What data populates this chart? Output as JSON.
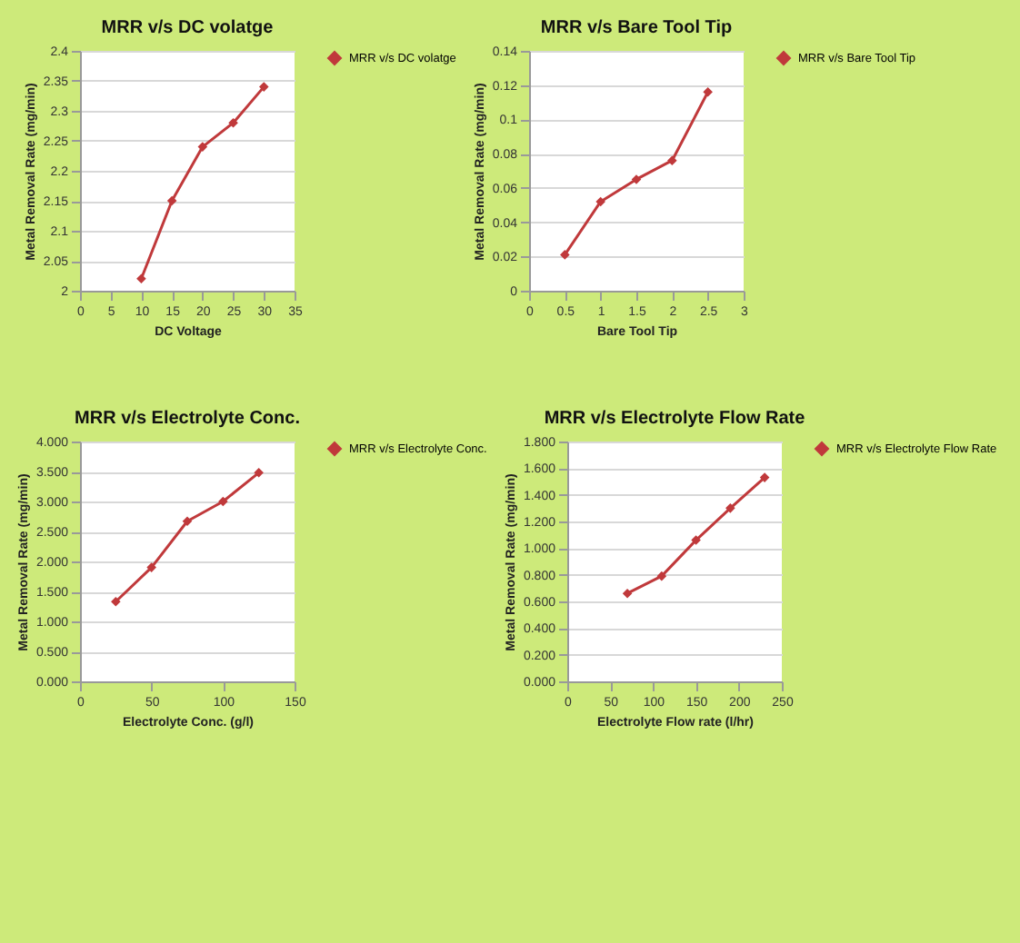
{
  "chart_data": [
    {
      "type": "line",
      "title": "MRR v/s DC volatge",
      "xlabel": "DC Voltage",
      "ylabel": "Metal Removal Rate (mg/min)",
      "x": [
        10,
        15,
        20,
        25,
        30
      ],
      "series": [
        {
          "name": "MRR v/s DC volatge",
          "color": "#c0393b",
          "values": [
            2.02,
            2.15,
            2.24,
            2.28,
            2.34
          ]
        }
      ],
      "xlim": [
        0,
        35
      ],
      "xticks": [
        0,
        5,
        10,
        15,
        20,
        25,
        30,
        35
      ],
      "ylim": [
        2,
        2.4
      ],
      "yticks": [
        2,
        2.05,
        2.1,
        2.15,
        2.2,
        2.25,
        2.3,
        2.35,
        2.4
      ],
      "grid": "y",
      "legend": "right",
      "marker": "diamond",
      "line_style": "solid"
    },
    {
      "type": "line",
      "title": "MRR v/s Bare Tool Tip",
      "xlabel": "Bare Tool Tip",
      "ylabel": "Metal Removal Rate (mg/min)",
      "x": [
        0.5,
        1,
        1.5,
        2,
        2.5
      ],
      "series": [
        {
          "name": "MRR v/s Bare Tool Tip",
          "color": "#c0393b",
          "values": [
            0.021,
            0.052,
            0.065,
            0.076,
            0.116
          ]
        }
      ],
      "xlim": [
        0,
        3
      ],
      "xticks": [
        0,
        0.5,
        1,
        1.5,
        2,
        2.5,
        3
      ],
      "ylim": [
        0,
        0.14
      ],
      "yticks": [
        0,
        0.02,
        0.04,
        0.06,
        0.08,
        0.1,
        0.12,
        0.14
      ],
      "grid": "y",
      "legend": "right",
      "marker": "diamond",
      "line_style": "solid"
    },
    {
      "type": "line",
      "title": "MRR v/s Electrolyte Conc.",
      "xlabel": "Electrolyte Conc. (g/l)",
      "ylabel": "Metal Removal Rate (mg/min)",
      "x": [
        25,
        50,
        75,
        100,
        125
      ],
      "series": [
        {
          "name": "MRR v/s Electrolyte Conc.",
          "color": "#c0393b",
          "values": [
            1.33,
            1.9,
            2.67,
            3.0,
            3.48
          ]
        }
      ],
      "xlim": [
        0,
        150
      ],
      "xticks": [
        0,
        50,
        100,
        150
      ],
      "ylim": [
        0,
        4
      ],
      "yticks": [
        {
          "value": 0,
          "label": "0.000"
        },
        {
          "value": 0.5,
          "label": "0.500"
        },
        {
          "value": 1,
          "label": "1.000"
        },
        {
          "value": 1.5,
          "label": "1.500"
        },
        {
          "value": 2,
          "label": "2.000"
        },
        {
          "value": 2.5,
          "label": "2.500"
        },
        {
          "value": 3,
          "label": "3.000"
        },
        {
          "value": 3.5,
          "label": "3.500"
        },
        {
          "value": 4,
          "label": "4.000"
        }
      ],
      "grid": "y",
      "legend": "right",
      "marker": "diamond",
      "line_style": "solid"
    },
    {
      "type": "line",
      "title": "MRR v/s Electrolyte Flow Rate",
      "xlabel": "Electrolyte Flow rate (l/hr)",
      "ylabel": "Metal Removal Rate (mg/min)",
      "x": [
        70,
        110,
        150,
        190,
        230
      ],
      "series": [
        {
          "name": "MRR v/s Electrolyte Flow Rate",
          "color": "#c0393b",
          "values": [
            0.66,
            0.79,
            1.06,
            1.3,
            1.53
          ]
        }
      ],
      "xlim": [
        0,
        250
      ],
      "xticks": [
        0,
        50,
        100,
        150,
        200,
        250
      ],
      "ylim": [
        0,
        1.8
      ],
      "yticks": [
        {
          "value": 0,
          "label": "0.000"
        },
        {
          "value": 0.2,
          "label": "0.200"
        },
        {
          "value": 0.4,
          "label": "0.400"
        },
        {
          "value": 0.6,
          "label": "0.600"
        },
        {
          "value": 0.8,
          "label": "0.800"
        },
        {
          "value": 1,
          "label": "1.000"
        },
        {
          "value": 1.2,
          "label": "1.200"
        },
        {
          "value": 1.4,
          "label": "1.400"
        },
        {
          "value": 1.6,
          "label": "1.600"
        },
        {
          "value": 1.8,
          "label": "1.800"
        }
      ],
      "grid": "y",
      "legend": "right",
      "marker": "diamond",
      "line_style": "solid"
    }
  ]
}
